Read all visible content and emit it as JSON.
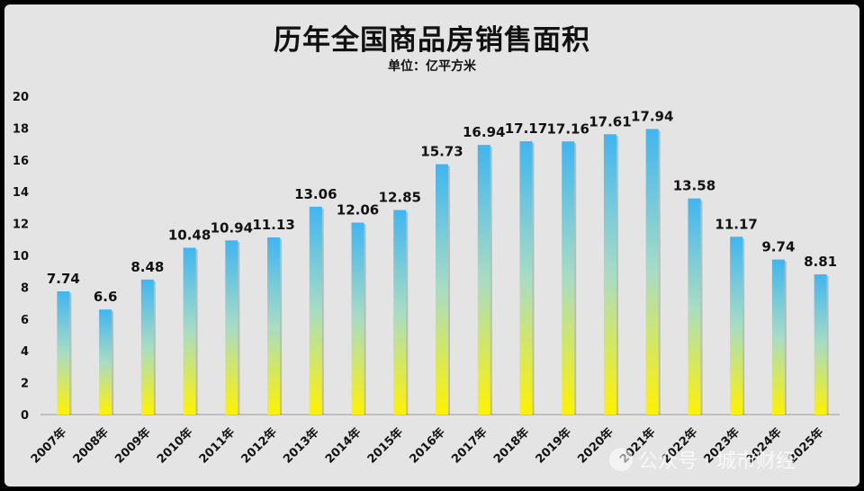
{
  "chart_data": {
    "type": "bar",
    "title": "历年全国商品房销售面积",
    "subtitle": "单位：亿平方米",
    "categories": [
      "2007年",
      "2008年",
      "2009年",
      "2010年",
      "2011年",
      "2012年",
      "2013年",
      "2014年",
      "2015年",
      "2016年",
      "2017年",
      "2018年",
      "2019年",
      "2020年",
      "2021年",
      "2022年",
      "2023年",
      "2024年",
      "2025年"
    ],
    "values": [
      7.74,
      6.6,
      8.48,
      10.48,
      10.94,
      11.13,
      13.06,
      12.06,
      12.85,
      15.73,
      16.94,
      17.17,
      17.16,
      17.61,
      17.94,
      13.58,
      11.17,
      9.74,
      8.81
    ],
    "value_labels": [
      "7.74",
      "6.6",
      "8.48",
      "10.48",
      "10.94",
      "11.13",
      "13.06",
      "12.06",
      "12.85",
      "15.73",
      "16.94",
      "17.17",
      "17.16",
      "17.61",
      "17.94",
      "13.58",
      "11.17",
      "9.74",
      "8.81"
    ],
    "yticks": [
      "0",
      "2",
      "4",
      "6",
      "8",
      "10",
      "12",
      "14",
      "16",
      "18",
      "20"
    ],
    "ylim": [
      0,
      20
    ],
    "grid": false,
    "legend": "none",
    "bar_gradient": {
      "top": "#3fb6f0",
      "middle": "#a8dcc4",
      "bottom": "#fff200"
    }
  },
  "watermark": {
    "text": "公众号 · 城市财经",
    "icon": "wechat-logo-icon"
  }
}
